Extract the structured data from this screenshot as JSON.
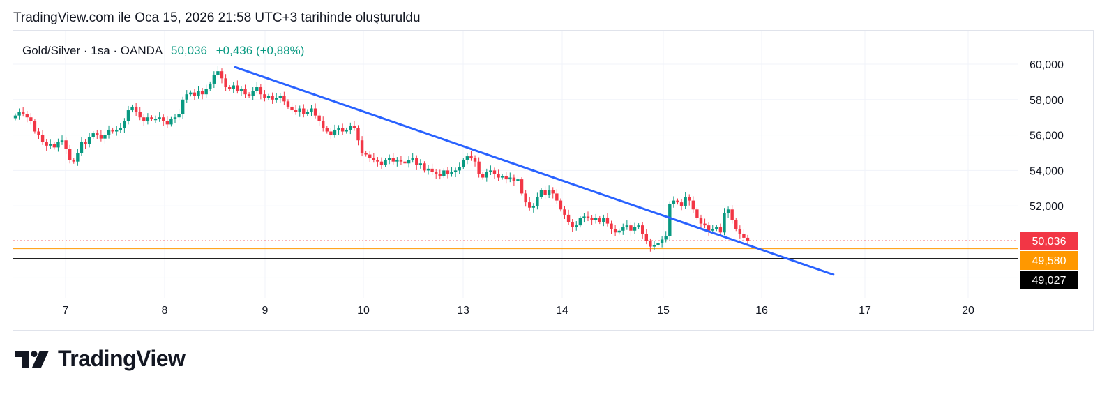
{
  "caption": "TradingView.com ile Oca 15, 2026 21:58 UTC+3 tarihinde oluşturuldu",
  "legend": {
    "symbol": "Gold/Silver · 1sa · OANDA",
    "value": "50,036",
    "change": "+0,436 (+0,88%)"
  },
  "brand": "TradingView",
  "colors": {
    "up": "#089981",
    "down": "#f23645",
    "trendline": "#2962ff",
    "orange_level": "#ff9800",
    "black_level": "#000000",
    "grid": "#f0f3fa"
  },
  "chart_data": {
    "type": "candlestick",
    "title": "Gold/Silver · 1sa · OANDA",
    "y_ticks": [
      "60,000",
      "58,000",
      "56,000",
      "54,000",
      "52,000"
    ],
    "y_tick_values": [
      60,
      58,
      56,
      54,
      52
    ],
    "x_ticks": [
      "7",
      "8",
      "9",
      "10",
      "13",
      "14",
      "15",
      "16",
      "17",
      "20"
    ],
    "ylim": [
      48.0,
      60.5
    ],
    "grid": true,
    "series_close": [
      57.1,
      57.3,
      57.2,
      57.0,
      56.8,
      56.2,
      56.0,
      55.6,
      55.4,
      55.5,
      55.3,
      55.6,
      55.7,
      55.2,
      54.6,
      54.5,
      55.0,
      55.6,
      55.5,
      55.9,
      56.1,
      56.0,
      55.8,
      56.0,
      56.3,
      56.2,
      56.3,
      56.4,
      56.8,
      57.4,
      57.6,
      57.3,
      57.0,
      56.8,
      57.0,
      56.9,
      56.9,
      57.0,
      56.8,
      56.6,
      56.9,
      57.0,
      57.2,
      58.0,
      58.3,
      58.4,
      58.2,
      58.5,
      58.3,
      58.6,
      58.9,
      59.4,
      59.6,
      59.2,
      58.7,
      58.6,
      58.8,
      58.5,
      58.6,
      58.3,
      58.2,
      58.5,
      58.7,
      58.3,
      58.1,
      58.2,
      58.0,
      58.1,
      58.2,
      57.9,
      57.6,
      57.4,
      57.3,
      57.5,
      57.2,
      57.3,
      57.5,
      57.1,
      56.8,
      56.4,
      56.2,
      56.0,
      56.3,
      56.4,
      56.2,
      56.3,
      56.5,
      56.4,
      55.7,
      55.0,
      54.9,
      54.7,
      54.6,
      54.5,
      54.3,
      54.6,
      54.7,
      54.5,
      54.6,
      54.5,
      54.4,
      54.6,
      54.7,
      54.3,
      54.4,
      54.0,
      54.1,
      53.9,
      53.8,
      53.7,
      54.0,
      53.8,
      53.9,
      54.0,
      54.2,
      54.6,
      54.8,
      54.7,
      54.5,
      53.8,
      53.6,
      53.9,
      54.0,
      53.8,
      53.6,
      53.7,
      53.5,
      53.6,
      53.4,
      53.5,
      52.7,
      52.2,
      51.9,
      52.0,
      52.5,
      52.9,
      52.6,
      52.9,
      52.7,
      52.3,
      51.8,
      51.5,
      51.1,
      50.8,
      50.9,
      51.3,
      51.4,
      51.3,
      51.2,
      51.3,
      51.1,
      51.3,
      51.0,
      50.7,
      50.5,
      50.6,
      50.8,
      50.9,
      50.6,
      50.8,
      50.9,
      50.4,
      50.0,
      49.7,
      49.8,
      49.9,
      50.1,
      50.3,
      52.1,
      52.3,
      52.2,
      52.0,
      52.5,
      52.3,
      51.8,
      51.3,
      51.0,
      50.9,
      50.6,
      50.7,
      50.8,
      50.5,
      51.6,
      51.8,
      51.2,
      50.7,
      50.4,
      50.2,
      50.036
    ],
    "levels": [
      {
        "value": 50.036,
        "label": "50,036",
        "color": "#f23645",
        "style": "dotted"
      },
      {
        "value": 49.58,
        "label": "49,580",
        "color": "#ff9800",
        "style": "solid"
      },
      {
        "value": 49.027,
        "label": "49,027",
        "color": "#000000",
        "style": "solid"
      }
    ],
    "trendline": {
      "from": {
        "x": "9",
        "y": 59.85
      },
      "to": {
        "x": "17",
        "y": 48.1
      }
    }
  }
}
